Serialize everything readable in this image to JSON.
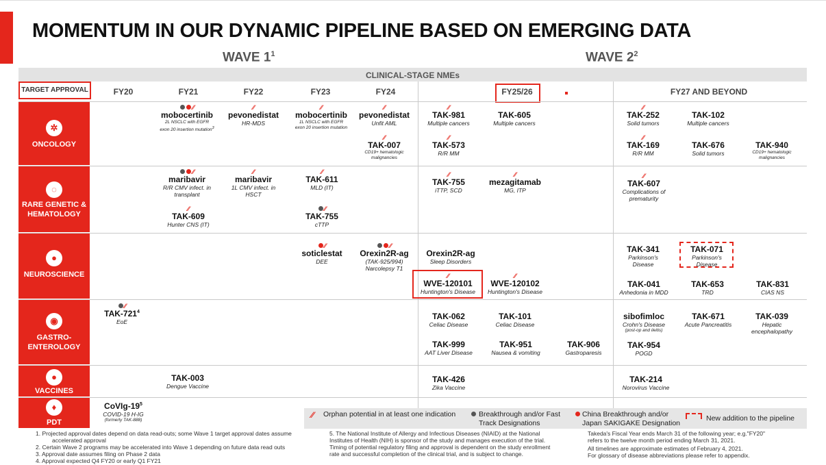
{
  "title": "MOMENTUM IN OUR DYNAMIC PIPELINE BASED ON EMERGING DATA",
  "wave1": {
    "label": "WAVE 1",
    "sup": "1"
  },
  "wave2": {
    "label": "WAVE 2",
    "sup": "2"
  },
  "band": "CLINICAL-STAGE NMEs",
  "target_approval": "TARGET APPROVAL",
  "fiscal_years": [
    "FY20",
    "FY21",
    "FY22",
    "FY23",
    "FY24",
    "FY25/26",
    "FY27 AND BEYOND"
  ],
  "categories": {
    "oncology": "ONCOLOGY",
    "rare_line1": "RARE GENETIC &",
    "rare_line2": "HEMATOLOGY",
    "neuro": "NEUROSCIENCE",
    "gastro_line1": "GASTRO-",
    "gastro_line2": "ENTEROLOGY",
    "vaccines": "VACCINES",
    "pdt": "PDT"
  },
  "drugs": {
    "mobocertinib_fy21": {
      "name": "mobocertinib",
      "d1": "2L NSCLC with EGFR",
      "d2": "exon 20 insertion mutation",
      "sup": "3"
    },
    "pevonedistat_fy22": {
      "name": "pevonedistat",
      "d1": "HR-MDS"
    },
    "mobocertinib_fy23": {
      "name": "mobocertinib",
      "d1": "1L NSCLC with EGFR",
      "d2": "exon 20 insertion mutation"
    },
    "pevonedistat_fy24": {
      "name": "pevonedistat",
      "d1": "Unfit AML"
    },
    "tak007": {
      "name": "TAK-007",
      "d1": "CD19+ hematologic",
      "d2": "malignancies"
    },
    "tak981": {
      "name": "TAK-981",
      "d1": "Multiple cancers"
    },
    "tak605": {
      "name": "TAK-605",
      "d1": "Multiple cancers"
    },
    "tak573": {
      "name": "TAK-573",
      "d1": "R/R MM"
    },
    "tak252": {
      "name": "TAK-252",
      "d1": "Solid tumors"
    },
    "tak102": {
      "name": "TAK-102",
      "d1": "Multiple cancers"
    },
    "tak169": {
      "name": "TAK-169",
      "d1": "R/R MM"
    },
    "tak676": {
      "name": "TAK-676",
      "d1": "Solid tumors"
    },
    "tak940": {
      "name": "TAK-940",
      "d1": "CD19+ hematologic",
      "d2": "malignancies"
    },
    "maribavir_fy21": {
      "name": "maribavir",
      "d1": "R/R CMV infect. in",
      "d2": "transplant"
    },
    "maribavir_fy22": {
      "name": "maribavir",
      "d1": "1L CMV infect. in",
      "d2": "HSCT"
    },
    "tak611": {
      "name": "TAK-611",
      "d1": "MLD (IT)"
    },
    "tak609": {
      "name": "TAK-609",
      "d1": "Hunter CNS (IT)"
    },
    "tak755_fy23": {
      "name": "TAK-755",
      "d1": "cTTP"
    },
    "tak755_fy25": {
      "name": "TAK-755",
      "d1": "iTTP, SCD"
    },
    "mezagitamab": {
      "name": "mezagitamab",
      "d1": "MG, ITP"
    },
    "tak607": {
      "name": "TAK-607",
      "d1": "Complications of",
      "d2": "prematurity"
    },
    "soticlestat": {
      "name": "soticlestat",
      "d1": "DEE"
    },
    "orexin_fy24": {
      "name": "Orexin2R-ag",
      "d1": "(TAK-925/994)",
      "d2": "Narcolepsy T1"
    },
    "orexin_fy25": {
      "name": "Orexin2R-ag",
      "d1": "Sleep Disorders"
    },
    "wve120101": {
      "name": "WVE-120101",
      "d1": "Huntington's Disease"
    },
    "wve120102": {
      "name": "WVE-120102",
      "d1": "Huntington's Disease"
    },
    "tak341": {
      "name": "TAK-341",
      "d1": "Parkinson's",
      "d2": "Disease"
    },
    "tak071": {
      "name": "TAK-071",
      "d1": "Parkinson's",
      "d2": "Disease"
    },
    "tak041": {
      "name": "TAK-041",
      "d1": "Anhedonia in MDD"
    },
    "tak653": {
      "name": "TAK-653",
      "d1": "TRD"
    },
    "tak831": {
      "name": "TAK-831",
      "d1": "CIAS NS"
    },
    "tak721": {
      "name": "TAK-721",
      "d1": "EoE",
      "sup": "4"
    },
    "tak062": {
      "name": "TAK-062",
      "d1": "Celiac Disease"
    },
    "tak101": {
      "name": "TAK-101",
      "d1": "Celiac Disease"
    },
    "sibofimloc": {
      "name": "sibofimloc",
      "d1": "Crohn's Disease",
      "d2": "(post-op and ileitis)"
    },
    "tak671": {
      "name": "TAK-671",
      "d1": "Acute Pancreatitis"
    },
    "tak039": {
      "name": "TAK-039",
      "d1": "Hepatic",
      "d2": "encephalopathy"
    },
    "tak999": {
      "name": "TAK-999",
      "d1": "AAT Liver Disease"
    },
    "tak951": {
      "name": "TAK-951",
      "d1": "Nausea & vomiting"
    },
    "tak906": {
      "name": "TAK-906",
      "d1": "Gastroparesis"
    },
    "tak954": {
      "name": "TAK-954",
      "d1": "POGD"
    },
    "tak003": {
      "name": "TAK-003",
      "d1": "Dengue Vaccine"
    },
    "tak426": {
      "name": "TAK-426",
      "d1": "Zika Vaccine"
    },
    "tak214": {
      "name": "TAK-214",
      "d1": "Norovirus Vaccine"
    },
    "covig": {
      "name": "CoVIg-19",
      "sup": "5",
      "d1": "COVID-19 H-IG",
      "d2": "(formerly TAK-888)"
    }
  },
  "legend": {
    "orphan": "Orphan potential in at least one indication",
    "breakthrough1": "Breakthrough and/or Fast",
    "breakthrough2": "Track Designations",
    "china1": "China Breakthrough and/or",
    "china2": "Japan SAKIGAKE Designation",
    "new": "New addition to the pipeline"
  },
  "footnotes": {
    "f1a": "1.     Projected approval dates depend on data read-outs; some Wave 1 target approval dates assume",
    "f1b": "accelerated approval",
    "f2": "2.     Certain Wave 2 programs may be accelerated into Wave 1 depending on future data read outs",
    "f3": "3.     Approval date assumes filing on Phase 2 data",
    "f4": "4.     Approval expected Q4 FY20 or early Q1 FY21",
    "f5a": "5. The National Institute of Allergy and Infectious Diseases (NIAID) at the National",
    "f5b": "Institutes of Health (NIH) is sponsor of the study and manages execution of the trial.",
    "f5c": "Timing of potential regulatory filing and approval is dependent on the study enrollment",
    "f5d": "rate and successful completion of the clinical trial, and is subject to change.",
    "r1": "Takeda's Fiscal Year ends March 31 of the following year; e.g.\"FY20\"",
    "r2": "refers to the twelve month period ending March 31, 2021.",
    "r3": "All timelines are approximate estimates of February 4, 2021.",
    "r4": "For glossary of disease abbreviations please refer to appendix."
  }
}
